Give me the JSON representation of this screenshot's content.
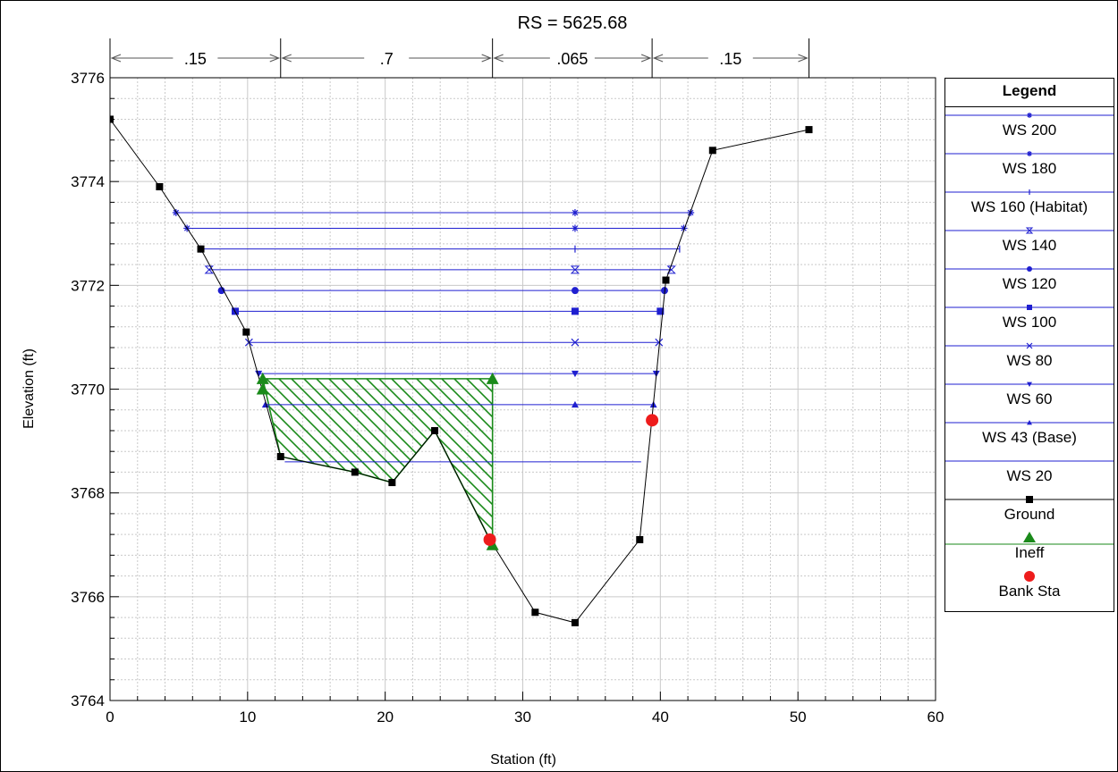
{
  "chart_data": {
    "type": "line",
    "title": "RS = 5625.68",
    "xlabel": "Station (ft)",
    "ylabel": "Elevation (ft)",
    "xlim": [
      0,
      60
    ],
    "ylim": [
      3764,
      3776
    ],
    "x_ticks": [
      0,
      10,
      20,
      30,
      40,
      50,
      60
    ],
    "y_ticks": [
      3764,
      3766,
      3768,
      3770,
      3772,
      3774,
      3776
    ],
    "grid": true,
    "manning_n": [
      {
        "label": ".15",
        "from": 0,
        "to": 12.4
      },
      {
        "label": ".7",
        "from": 12.4,
        "to": 27.8
      },
      {
        "label": ".065",
        "from": 27.8,
        "to": 39.4
      },
      {
        "label": ".15",
        "from": 39.4,
        "to": 50.8
      }
    ],
    "ground": {
      "name": "Ground",
      "x": [
        0,
        3.6,
        6.6,
        9.9,
        12.4,
        17.8,
        20.5,
        23.6,
        27.6,
        30.9,
        33.8,
        38.5,
        40.4,
        43.8,
        50.8
      ],
      "y": [
        3775.2,
        3773.9,
        3772.7,
        3771.1,
        3768.7,
        3768.4,
        3768.2,
        3769.2,
        3767.1,
        3765.7,
        3765.5,
        3767.1,
        3772.1,
        3774.6,
        3775.0
      ]
    },
    "water_surfaces": [
      {
        "name": "WS 200",
        "elev": 3773.4,
        "x_left": 4.8,
        "x_right": 42.2,
        "marker": "star"
      },
      {
        "name": "WS 180",
        "elev": 3773.1,
        "x_left": 5.6,
        "x_right": 41.7,
        "marker": "star"
      },
      {
        "name": "WS 160 (Habitat)",
        "elev": 3772.7,
        "x_left": 6.6,
        "x_right": 41.4,
        "marker": "tick"
      },
      {
        "name": "WS 140",
        "elev": 3772.3,
        "x_left": 7.2,
        "x_right": 40.8,
        "marker": "hourglass"
      },
      {
        "name": "WS 120",
        "elev": 3771.9,
        "x_left": 8.1,
        "x_right": 40.3,
        "marker": "circle"
      },
      {
        "name": "WS 100",
        "elev": 3771.5,
        "x_left": 9.1,
        "x_right": 40.0,
        "marker": "square"
      },
      {
        "name": "WS 80",
        "elev": 3770.9,
        "x_left": 10.1,
        "x_right": 39.9,
        "marker": "x"
      },
      {
        "name": "WS 60",
        "elev": 3770.3,
        "x_left": 10.8,
        "x_right": 39.7,
        "marker": "triangle-down"
      },
      {
        "name": "WS 43 (Base)",
        "elev": 3769.7,
        "x_left": 11.3,
        "x_right": 39.5,
        "marker": "triangle-up"
      },
      {
        "name": "WS 20",
        "elev": 3768.6,
        "x_left": 12.7,
        "x_right": 38.6,
        "marker": "none"
      }
    ],
    "ineffective": {
      "name": "Ineff",
      "polygon_x": [
        11.1,
        27.8,
        27.8,
        23.6,
        20.5,
        17.8,
        12.4,
        11.1
      ],
      "polygon_y": [
        3770.2,
        3770.2,
        3767.0,
        3769.2,
        3768.2,
        3768.4,
        3768.7,
        3770.2
      ],
      "markers": [
        {
          "x": 11.1,
          "y": 3770.2
        },
        {
          "x": 11.1,
          "y": 3770.0
        },
        {
          "x": 27.8,
          "y": 3770.2
        },
        {
          "x": 27.8,
          "y": 3767.0
        }
      ]
    },
    "bank_stations": {
      "name": "Bank Sta",
      "points": [
        {
          "x": 27.6,
          "y": 3767.1
        },
        {
          "x": 39.4,
          "y": 3769.4
        }
      ]
    },
    "legend": {
      "title": "Legend",
      "position": "right",
      "entries": [
        "WS 200",
        "WS 180",
        "WS 160 (Habitat)",
        "WS 140",
        "WS 120",
        "WS 100",
        "WS 80",
        "WS 60",
        "WS 43 (Base)",
        "WS 20",
        "Ground",
        "Ineff",
        "Bank Sta"
      ]
    },
    "colors": {
      "water_surface": "#1f1fd0",
      "ground": "#000000",
      "ineff": "#1a8a1a",
      "bank": "#ee1c1c",
      "grid": "#c9c9c9"
    }
  }
}
